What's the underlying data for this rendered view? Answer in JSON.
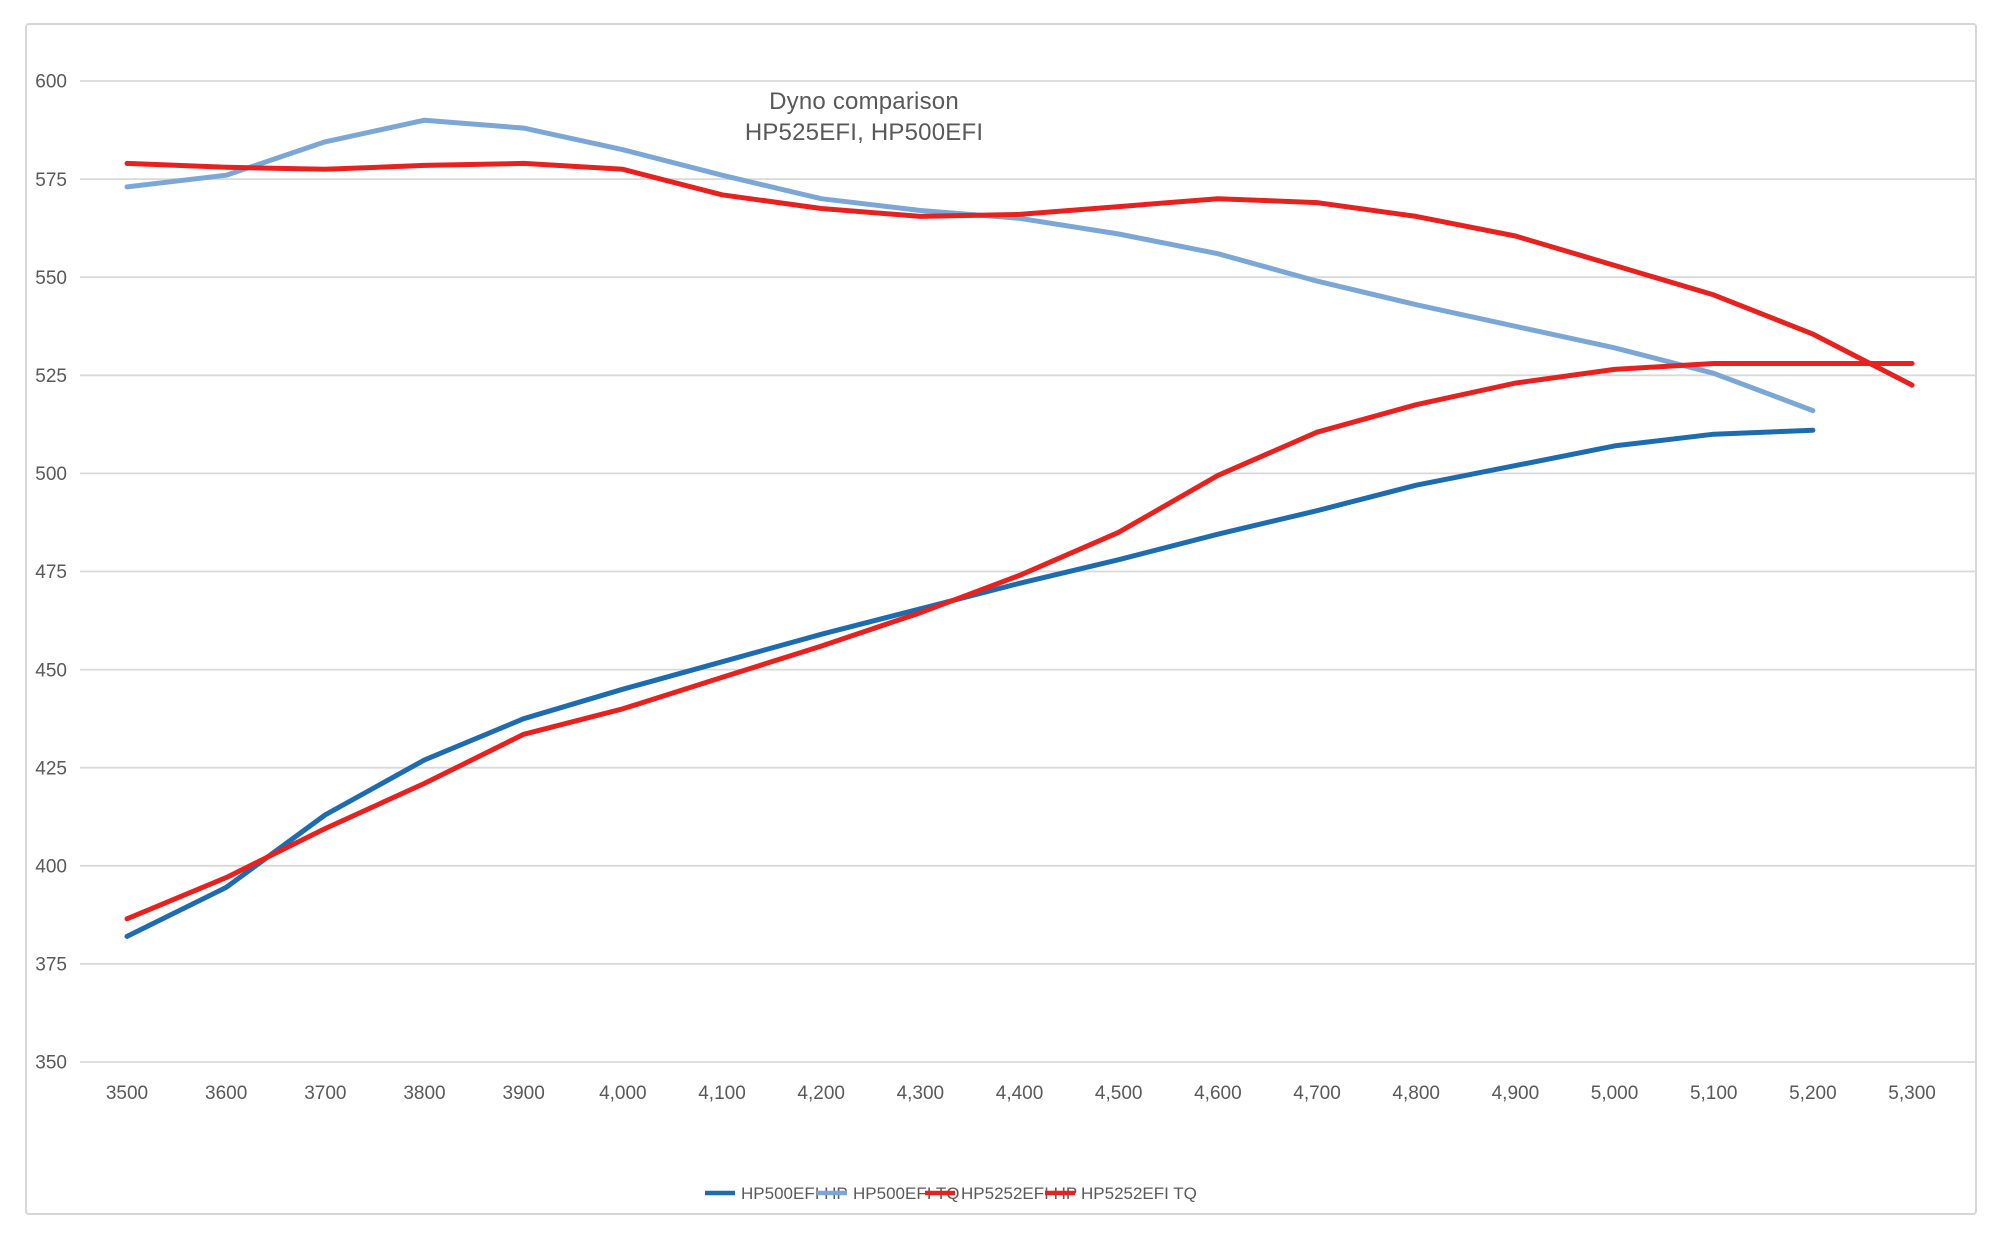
{
  "chart_data": {
    "type": "line",
    "title": "Dyno comparison HP525EFI, HP500EFI",
    "title_lines": [
      "Dyno comparison",
      "HP525EFI, HP500EFI"
    ],
    "xlabel": "",
    "ylabel": "",
    "x_tick_labels": [
      "3500",
      "3600",
      "3700",
      "3800",
      "3900",
      "4,000",
      "4,100",
      "4,200",
      "4,300",
      "4,400",
      "4,500",
      "4,600",
      "4,700",
      "4,800",
      "4,900",
      "5,000",
      "5,100",
      "5,200",
      "5,300"
    ],
    "x_values": [
      3500,
      3600,
      3700,
      3800,
      3900,
      4000,
      4100,
      4200,
      4300,
      4400,
      4500,
      4600,
      4700,
      4800,
      4900,
      5000,
      5100,
      5200,
      5300
    ],
    "y_axis": {
      "min": 350,
      "max": 600,
      "step": 25,
      "tick_labels": [
        "350",
        "375",
        "400",
        "425",
        "450",
        "475",
        "500",
        "525",
        "550",
        "575",
        "600"
      ]
    },
    "ylim": [
      350,
      600
    ],
    "grid": "horizontal",
    "legend_position": "bottom",
    "series": [
      {
        "name": "HP500EFI HP",
        "color": "#1e6cb0",
        "x_start": 3500,
        "x_end": 5200,
        "values": [
          382,
          394.5,
          413,
          427,
          437.5,
          445,
          452,
          459,
          465.5,
          472,
          478,
          484.5,
          490.5,
          497,
          502,
          507,
          510,
          511
        ]
      },
      {
        "name": "HP500EFI TQ",
        "color": "#7ba7d7",
        "x_start": 3500,
        "x_end": 5200,
        "values": [
          573,
          576,
          584.5,
          590,
          588,
          582.5,
          576,
          570,
          567,
          565,
          561,
          556,
          549,
          543,
          537.5,
          532,
          525.5,
          516
        ]
      },
      {
        "name": "HP5252EFI HP",
        "color": "#e8211f",
        "x_start": 3500,
        "x_end": 5300,
        "values": [
          386.5,
          397,
          409.5,
          421,
          433.5,
          440,
          448,
          456,
          464.5,
          474,
          485,
          499.5,
          510.5,
          517.5,
          523,
          526.5,
          528,
          528,
          528
        ]
      },
      {
        "name": "HP5252EFI TQ",
        "color": "#e8211f",
        "x_start": 3500,
        "x_end": 5300,
        "values": [
          579,
          578,
          577.5,
          578.5,
          579,
          577.5,
          571,
          567.5,
          565.5,
          566,
          568,
          570,
          569,
          565.5,
          560.5,
          553,
          545.5,
          535.5,
          522.5
        ]
      }
    ],
    "colors": {
      "gridline": "#d9d9d9",
      "axis_text": "#595959",
      "title_text": "#595959",
      "frame_border": "#d6d6d6",
      "background": "#ffffff"
    }
  }
}
